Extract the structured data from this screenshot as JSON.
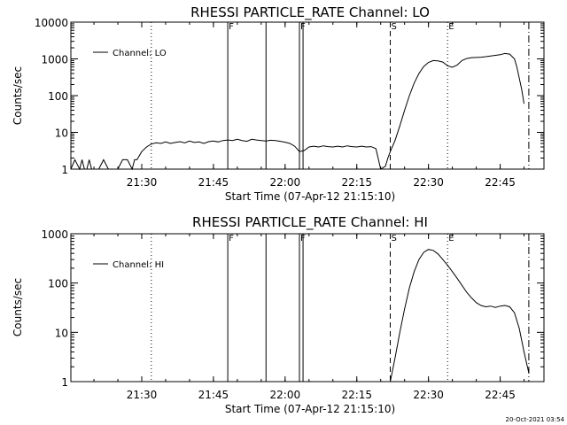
{
  "footer": {
    "timestamp": "20-Oct-2021 03:54"
  },
  "chart_data": [
    {
      "type": "line",
      "title": "RHESSI PARTICLE_RATE Channel: LO",
      "xlabel": "Start Time (07-Apr-12 21:15:10)",
      "ylabel": "Counts/sec",
      "x_unit": "minutes",
      "xlim": [
        "21:15:10",
        "22:54:10"
      ],
      "x_ticks": [
        "21:30",
        "21:45",
        "22:00",
        "22:15",
        "22:30",
        "22:45"
      ],
      "yscale": "log",
      "ylim": [
        1,
        10000
      ],
      "y_ticks": [
        "1",
        "10",
        "100",
        "1000",
        "10000"
      ],
      "legend": {
        "position": "top-left",
        "entries": [
          "Channel: LO"
        ]
      },
      "series": [
        {
          "name": "Channel: LO",
          "x": [
            "21:15:10",
            "21:16:00",
            "21:17:00",
            "21:17:30",
            "21:18:00",
            "21:18:30",
            "21:19:00",
            "21:19:30",
            "21:20:00",
            "21:21:00",
            "21:22:00",
            "21:23:00",
            "21:23:30",
            "21:25:00",
            "21:26:00",
            "21:27:00",
            "21:28:00",
            "21:28:30",
            "21:29:00",
            "21:30:00",
            "21:31:00",
            "21:32:00",
            "21:33:00",
            "21:34:00",
            "21:35:00",
            "21:36:00",
            "21:37:00",
            "21:38:00",
            "21:39:00",
            "21:40:00",
            "21:41:00",
            "21:42:00",
            "21:43:00",
            "21:44:00",
            "21:45:00",
            "21:46:00",
            "21:47:00",
            "21:48:00",
            "21:49:00",
            "21:50:00",
            "21:51:00",
            "21:52:00",
            "21:53:00",
            "21:54:00",
            "21:55:00",
            "21:56:00",
            "21:57:00",
            "21:58:00",
            "21:59:00",
            "22:00:00",
            "22:01:00",
            "22:02:00",
            "22:03:00",
            "22:04:00",
            "22:05:00",
            "22:06:00",
            "22:07:00",
            "22:08:00",
            "22:09:00",
            "22:10:00",
            "22:11:00",
            "22:12:00",
            "22:13:00",
            "22:14:00",
            "22:15:00",
            "22:16:00",
            "22:17:00",
            "22:18:00",
            "22:19:00",
            "22:20:00",
            "22:21:00",
            "22:21:30",
            "22:22:00",
            "22:23:00",
            "22:24:00",
            "22:25:00",
            "22:26:00",
            "22:27:00",
            "22:28:00",
            "22:29:00",
            "22:30:00",
            "22:31:00",
            "22:32:00",
            "22:33:00",
            "22:34:00",
            "22:35:00",
            "22:36:00",
            "22:37:00",
            "22:38:00",
            "22:39:00",
            "22:40:00",
            "22:41:00",
            "22:42:00",
            "22:43:00",
            "22:44:00",
            "22:45:00",
            "22:46:00",
            "22:47:00",
            "22:48:00",
            "22:48:30",
            "22:49:00",
            "22:49:30",
            "22:50:00"
          ],
          "values": [
            1,
            1.8,
            1,
            1.8,
            1,
            1,
            1.8,
            1,
            1,
            1,
            1.8,
            1,
            1,
            1,
            1.8,
            1.8,
            1,
            1.8,
            1.8,
            3,
            4,
            4.8,
            5.2,
            5,
            5.5,
            5,
            5.3,
            5.6,
            5.2,
            5.8,
            5.3,
            5.5,
            5,
            5.6,
            5.8,
            5.5,
            6,
            6.2,
            6,
            6.5,
            6,
            5.7,
            6.5,
            6.2,
            6,
            5.8,
            6.1,
            6,
            5.7,
            5.4,
            5,
            4.2,
            3,
            3.2,
            4,
            4.2,
            4,
            4.3,
            4.1,
            4,
            4.2,
            4,
            4.3,
            4.1,
            4,
            4.2,
            4,
            4.1,
            3.6,
            1,
            1.2,
            2,
            3,
            6,
            15,
            40,
            100,
            220,
            400,
            620,
            800,
            900,
            880,
            820,
            650,
            590,
            680,
            900,
            1020,
            1080,
            1090,
            1110,
            1150,
            1200,
            1250,
            1300,
            1400,
            1350,
            1000,
            600,
            300,
            150,
            60
          ]
        }
      ],
      "markers": [
        {
          "time": "21:32:00",
          "style": "dotted"
        },
        {
          "time": "21:48:00",
          "style": "solid",
          "label": "F"
        },
        {
          "time": "21:56:00",
          "style": "solid"
        },
        {
          "time": "22:03:00",
          "style": "solid",
          "label": "F"
        },
        {
          "time": "22:03:45",
          "style": "solid"
        },
        {
          "time": "22:22:00",
          "style": "dashed",
          "label": "S"
        },
        {
          "time": "22:34:00",
          "style": "dotted",
          "label": "E"
        },
        {
          "time": "22:51:00",
          "style": "dashdot"
        }
      ]
    },
    {
      "type": "line",
      "title": "RHESSI PARTICLE_RATE Channel: HI",
      "xlabel": "Start Time (07-Apr-12 21:15:10)",
      "ylabel": "Counts/sec",
      "x_unit": "minutes",
      "xlim": [
        "21:15:10",
        "22:54:10"
      ],
      "x_ticks": [
        "21:30",
        "21:45",
        "22:00",
        "22:15",
        "22:30",
        "22:45"
      ],
      "yscale": "log",
      "ylim": [
        1,
        1000
      ],
      "y_ticks": [
        "1",
        "10",
        "100",
        "1000"
      ],
      "legend": {
        "position": "top-left",
        "entries": [
          "Channel: HI"
        ]
      },
      "series": [
        {
          "name": "Channel: HI",
          "x": [
            "22:22:00",
            "22:23:00",
            "22:24:00",
            "22:25:00",
            "22:26:00",
            "22:27:00",
            "22:28:00",
            "22:29:00",
            "22:30:00",
            "22:31:00",
            "22:32:00",
            "22:33:00",
            "22:34:00",
            "22:35:00",
            "22:36:00",
            "22:37:00",
            "22:38:00",
            "22:39:00",
            "22:40:00",
            "22:41:00",
            "22:42:00",
            "22:43:00",
            "22:44:00",
            "22:45:00",
            "22:46:00",
            "22:47:00",
            "22:48:00",
            "22:49:00",
            "22:50:00",
            "22:51:00"
          ],
          "values": [
            1,
            3,
            10,
            30,
            80,
            170,
            300,
            420,
            480,
            460,
            390,
            300,
            230,
            170,
            125,
            90,
            65,
            50,
            40,
            35,
            33,
            34,
            32,
            34,
            35,
            33,
            25,
            12,
            4,
            1.5
          ]
        }
      ],
      "markers": [
        {
          "time": "21:32:00",
          "style": "dotted"
        },
        {
          "time": "21:48:00",
          "style": "solid",
          "label": "F"
        },
        {
          "time": "21:56:00",
          "style": "solid"
        },
        {
          "time": "22:03:00",
          "style": "solid",
          "label": "F"
        },
        {
          "time": "22:03:45",
          "style": "solid"
        },
        {
          "time": "22:22:00",
          "style": "dashed",
          "label": "S"
        },
        {
          "time": "22:34:00",
          "style": "dotted",
          "label": "E"
        },
        {
          "time": "22:51:00",
          "style": "dashdot"
        }
      ]
    }
  ]
}
